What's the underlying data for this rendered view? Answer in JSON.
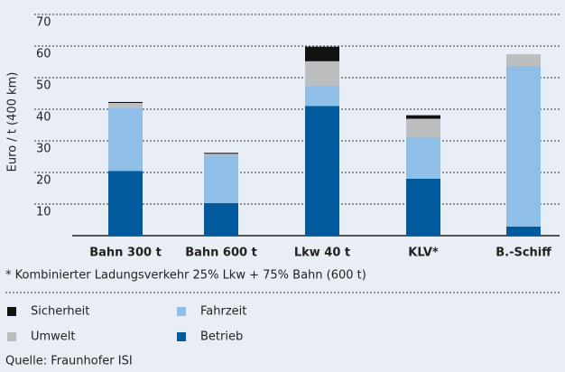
{
  "chart_data": {
    "type": "stacked_bar",
    "y_label": "Euro / t (400 km)",
    "categories": [
      "Bahn 300 t",
      "Bahn 600 t",
      "Lkw 40 t",
      "KLV*",
      "B.-Schiff"
    ],
    "series": [
      {
        "name": "Betrieb",
        "color": "#005a9c",
        "values": [
          20.5,
          10.3,
          41,
          18,
          2.9
        ]
      },
      {
        "name": "Fahrzeit",
        "color": "#8fbfe8",
        "values": [
          20,
          15,
          6.5,
          13,
          50.8
        ]
      },
      {
        "name": "Umwelt",
        "color": "#bcbdbf",
        "values": [
          1.5,
          0.6,
          7.7,
          6,
          3.7
        ]
      },
      {
        "name": "Sicherheit",
        "color": "#111111",
        "values": [
          0.3,
          0.3,
          4.6,
          1.1,
          0
        ]
      }
    ],
    "ylim": [
      0,
      73
    ],
    "yticks": [
      10,
      20,
      30,
      40,
      50,
      60,
      70
    ],
    "grid": true,
    "footnote": "* Kombinierter Ladungsverkehr 25% Lkw + 75% Bahn (600 t)",
    "source": "Quelle: Fraunhofer ISI"
  }
}
